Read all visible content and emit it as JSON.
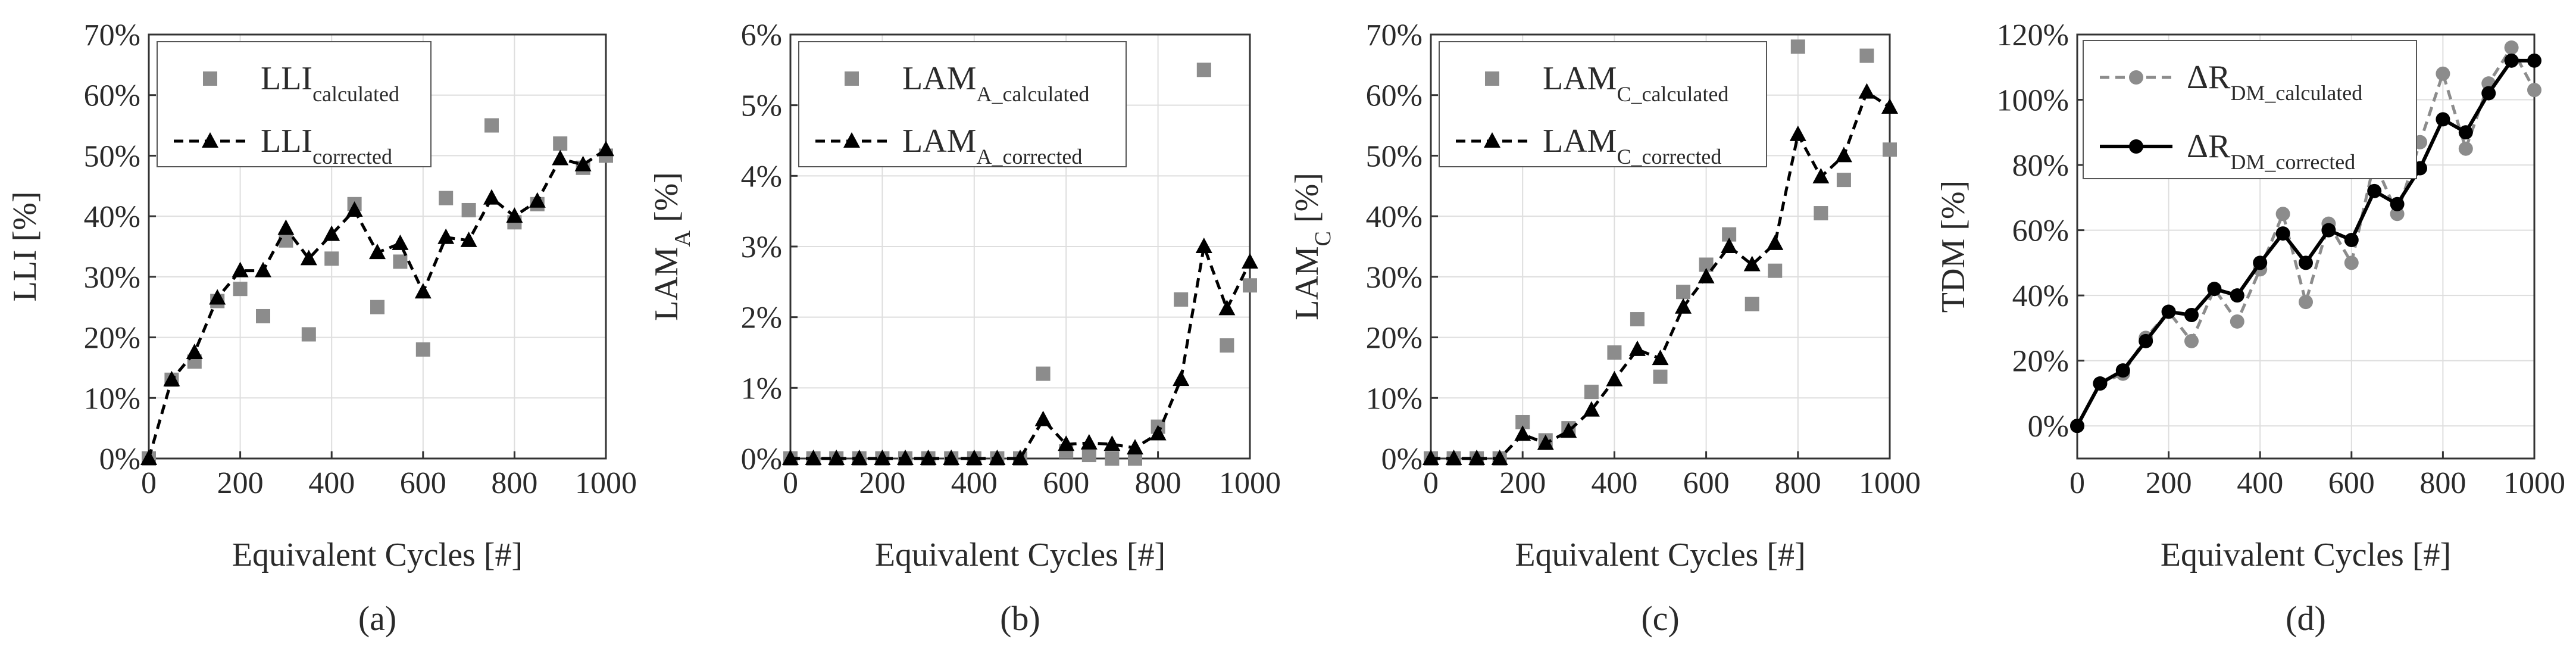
{
  "chart_data": [
    {
      "type": "scatter",
      "panel_label": "(a)",
      "xlabel": "Equivalent Cycles [#]",
      "ylabel": "LLI [%]",
      "xlim": [
        0,
        1000
      ],
      "ylim": [
        0,
        70
      ],
      "x_ticks": [
        0,
        200,
        400,
        600,
        800,
        1000
      ],
      "y_ticks": [
        0,
        10,
        20,
        30,
        40,
        50,
        60,
        70
      ],
      "y_tick_labels": [
        "0%",
        "10%",
        "20%",
        "30%",
        "40%",
        "50%",
        "60%",
        "70%"
      ],
      "grid": true,
      "legend_position": "top-left",
      "series": [
        {
          "name_main": "LLI",
          "name_sub": "calculated",
          "mode": "markers",
          "marker": "square",
          "color": "#8c8c8c",
          "x": [
            0,
            50,
            100,
            150,
            200,
            250,
            300,
            350,
            400,
            450,
            500,
            550,
            600,
            650,
            700,
            750,
            800,
            850,
            900,
            950,
            1000
          ],
          "y": [
            0,
            13,
            16,
            26,
            28,
            23.5,
            36,
            20.5,
            33,
            42,
            25,
            32.5,
            18,
            43,
            41,
            55,
            39,
            42,
            52,
            48,
            50
          ]
        },
        {
          "name_main": "LLI",
          "name_sub": "corrected",
          "mode": "dashed-line-markers",
          "marker": "triangle",
          "color": "#000000",
          "x": [
            0,
            50,
            100,
            150,
            200,
            250,
            300,
            350,
            400,
            450,
            500,
            550,
            600,
            650,
            700,
            750,
            800,
            850,
            900,
            950,
            1000
          ],
          "y": [
            0,
            13,
            17.5,
            26.5,
            31,
            31,
            38,
            33,
            37,
            41,
            34,
            35.5,
            27.5,
            36.5,
            36,
            43,
            40,
            42.5,
            49.5,
            48.5,
            51
          ]
        }
      ]
    },
    {
      "type": "scatter",
      "panel_label": "(b)",
      "xlabel": "Equivalent Cycles [#]",
      "ylabel_main": "LAM",
      "ylabel_sub": "A",
      "ylabel_suffix": " [%]",
      "xlim": [
        0,
        1000
      ],
      "ylim": [
        0,
        6
      ],
      "x_ticks": [
        0,
        200,
        400,
        600,
        800,
        1000
      ],
      "y_ticks": [
        0,
        1,
        2,
        3,
        4,
        5,
        6
      ],
      "y_tick_labels": [
        "0%",
        "1%",
        "2%",
        "3%",
        "4%",
        "5%",
        "6%"
      ],
      "grid": true,
      "legend_position": "top-left",
      "series": [
        {
          "name_main": "LAM",
          "name_sub": "A_calculated",
          "mode": "markers",
          "marker": "square",
          "color": "#8c8c8c",
          "x": [
            0,
            50,
            100,
            150,
            200,
            250,
            300,
            350,
            400,
            450,
            500,
            550,
            600,
            650,
            700,
            750,
            800,
            850,
            900,
            950,
            1000
          ],
          "y": [
            0,
            0,
            0,
            0,
            0,
            0,
            0,
            0,
            0,
            0,
            0,
            1.2,
            0.1,
            0.05,
            0,
            0,
            0.45,
            2.25,
            5.5,
            1.6,
            2.45
          ]
        },
        {
          "name_main": "LAM",
          "name_sub": "A_corrected",
          "mode": "dashed-line-markers",
          "marker": "triangle",
          "color": "#000000",
          "x": [
            0,
            50,
            100,
            150,
            200,
            250,
            300,
            350,
            400,
            450,
            500,
            550,
            600,
            650,
            700,
            750,
            800,
            850,
            900,
            950,
            1000
          ],
          "y": [
            0,
            0,
            0,
            0,
            0,
            0,
            0,
            0,
            0,
            0,
            0,
            0.55,
            0.2,
            0.22,
            0.2,
            0.15,
            0.35,
            1.12,
            3.0,
            2.12,
            2.78
          ]
        }
      ]
    },
    {
      "type": "scatter",
      "panel_label": "(c)",
      "xlabel": "Equivalent Cycles [#]",
      "ylabel_main": "LAM",
      "ylabel_sub": "C",
      "ylabel_suffix": " [%]",
      "xlim": [
        0,
        1000
      ],
      "ylim": [
        0,
        70
      ],
      "x_ticks": [
        0,
        200,
        400,
        600,
        800,
        1000
      ],
      "y_ticks": [
        0,
        10,
        20,
        30,
        40,
        50,
        60,
        70
      ],
      "y_tick_labels": [
        "0%",
        "10%",
        "20%",
        "30%",
        "40%",
        "50%",
        "60%",
        "70%"
      ],
      "grid": true,
      "legend_position": "top-left",
      "series": [
        {
          "name_main": "LAM",
          "name_sub": "C_calculated",
          "mode": "markers",
          "marker": "square",
          "color": "#8c8c8c",
          "x": [
            0,
            50,
            100,
            150,
            200,
            250,
            300,
            350,
            400,
            450,
            500,
            550,
            600,
            650,
            700,
            750,
            800,
            850,
            900,
            950,
            1000
          ],
          "y": [
            0,
            0,
            0,
            0,
            6,
            3,
            5,
            11,
            17.5,
            23,
            13.5,
            27.5,
            32,
            37,
            25.5,
            31,
            68,
            40.5,
            46,
            66.5,
            51
          ]
        },
        {
          "name_main": "LAM",
          "name_sub": "C_corrected",
          "mode": "dashed-line-markers",
          "marker": "triangle",
          "color": "#000000",
          "x": [
            0,
            50,
            100,
            150,
            200,
            250,
            300,
            350,
            400,
            450,
            500,
            550,
            600,
            650,
            700,
            750,
            800,
            850,
            900,
            950,
            1000
          ],
          "y": [
            0,
            0,
            0,
            0,
            4,
            2.5,
            4.5,
            8,
            13,
            18,
            16.5,
            25,
            30,
            35,
            32,
            35.5,
            53.5,
            46.5,
            50,
            60.5,
            58
          ]
        }
      ]
    },
    {
      "type": "line",
      "panel_label": "(d)",
      "xlabel": "Equivalent Cycles [#]",
      "ylabel": "TDM [%]",
      "xlim": [
        0,
        1000
      ],
      "ylim": [
        -10,
        120
      ],
      "x_ticks": [
        0,
        200,
        400,
        600,
        800,
        1000
      ],
      "y_ticks": [
        0,
        20,
        40,
        60,
        80,
        100,
        120
      ],
      "y_tick_labels": [
        "0%",
        "20%",
        "40%",
        "60%",
        "80%",
        "100%",
        "120%"
      ],
      "grid": true,
      "legend_position": "top-left",
      "series": [
        {
          "name_main": "ΔR",
          "name_sub": "DM_calculated",
          "mode": "dashed-line-markers",
          "marker": "circle",
          "color": "#8c8c8c",
          "x": [
            0,
            50,
            100,
            150,
            200,
            250,
            300,
            350,
            400,
            450,
            500,
            550,
            600,
            650,
            700,
            750,
            800,
            850,
            900,
            950,
            1000
          ],
          "y": [
            0,
            13,
            16,
            27,
            35,
            26,
            42,
            32,
            48,
            65,
            38,
            62,
            50,
            81,
            65,
            87,
            108,
            85,
            105,
            116,
            103
          ]
        },
        {
          "name_main": "ΔR",
          "name_sub": "DM_corrected",
          "mode": "solid-line-markers",
          "marker": "circle",
          "color": "#000000",
          "x": [
            0,
            50,
            100,
            150,
            200,
            250,
            300,
            350,
            400,
            450,
            500,
            550,
            600,
            650,
            700,
            750,
            800,
            850,
            900,
            950,
            1000
          ],
          "y": [
            0,
            13,
            17,
            26,
            35,
            34,
            42,
            40,
            50,
            59,
            50,
            60,
            57,
            72,
            68,
            79,
            94,
            90,
            102,
            112,
            112
          ]
        }
      ]
    }
  ]
}
